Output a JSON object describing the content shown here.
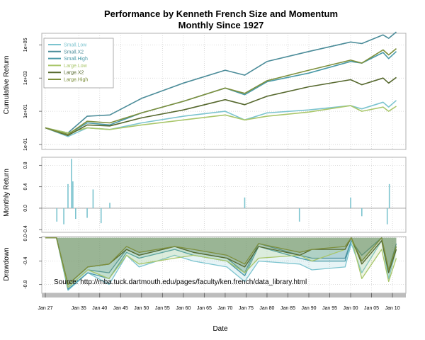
{
  "chart_data": [
    {
      "type": "line",
      "panel": "cumulative",
      "title": "Performance by Kenneth French Size and Momentum",
      "subtitle": "Monthly Since 1927",
      "ylabel": "Cumulative Return",
      "y_scale": "log",
      "y_ticks": [
        "1e-01",
        "1e+01",
        "1e+03",
        "1e+05"
      ],
      "ylim": [
        0.05,
        500000
      ],
      "grid": true,
      "legend_position": "top-left",
      "x": [
        "1927-01",
        "1932-06",
        "1937-01",
        "1942-06",
        "1950-01",
        "1960-01",
        "1970-01",
        "1974-09",
        "1980-01",
        "1990-01",
        "2000-01",
        "2002-09",
        "2007-10",
        "2009-02",
        "2010-12"
      ],
      "series": [
        {
          "name": "Small.Low",
          "color": "#7cc4cf",
          "values": [
            1,
            0.3,
            1.0,
            0.8,
            2.0,
            5.0,
            10.0,
            3.0,
            8.0,
            12.0,
            22.0,
            14.0,
            35.0,
            18.0,
            45.0
          ]
        },
        {
          "name": "Small.X2",
          "color": "#4b8c99",
          "values": [
            1,
            0.5,
            5.0,
            6.0,
            60.0,
            500.0,
            3000.0,
            1500.0,
            10000.0,
            40000.0,
            150000.0,
            120000.0,
            400000.0,
            250000.0,
            600000.0
          ]
        },
        {
          "name": "Small.High",
          "color": "#4a9aa8",
          "values": [
            1,
            0.4,
            2.0,
            1.5,
            8.0,
            40.0,
            250.0,
            100.0,
            600.0,
            2000.0,
            10000.0,
            8000.0,
            35000.0,
            15000.0,
            40000.0
          ]
        },
        {
          "name": "Large.Low",
          "color": "#a9c66a",
          "values": [
            1,
            0.5,
            1.0,
            0.8,
            1.5,
            3.0,
            6.0,
            3.0,
            5.0,
            9.0,
            22.0,
            10.0,
            18.0,
            10.0,
            20.0
          ]
        },
        {
          "name": "Large.X2",
          "color": "#56682e",
          "values": [
            1,
            0.35,
            1.5,
            1.3,
            4.0,
            12.0,
            50.0,
            25.0,
            80.0,
            300.0,
            800.0,
            400.0,
            1000.0,
            500.0,
            1100.0
          ]
        },
        {
          "name": "Large.High",
          "color": "#7d8f3c",
          "values": [
            1,
            0.4,
            2.5,
            2.0,
            8.0,
            40.0,
            250.0,
            120.0,
            700.0,
            3000.0,
            12000.0,
            8000.0,
            50000.0,
            25000.0,
            60000.0
          ]
        }
      ]
    },
    {
      "type": "line",
      "panel": "monthly",
      "ylabel": "Monthly Return",
      "y_ticks": [
        "-0.4",
        "0.0",
        "0.4",
        "0.8"
      ],
      "ylim": [
        -0.45,
        0.95
      ],
      "grid": true,
      "x": [
        "1929-10",
        "1931-06",
        "1932-06",
        "1933-04",
        "1933-08",
        "1934-04",
        "1937-01",
        "1938-06",
        "1940-05",
        "1942-06",
        "1974-09",
        "1987-10",
        "2000-01",
        "2002-09",
        "2008-10",
        "2009-04"
      ],
      "series": [
        {
          "name": "Small.Low",
          "color": "#7cc4cf",
          "values": [
            -0.25,
            -0.3,
            0.45,
            0.92,
            0.5,
            -0.2,
            -0.18,
            0.35,
            -0.28,
            0.1,
            0.2,
            -0.25,
            0.2,
            -0.15,
            -0.3,
            0.45
          ]
        }
      ]
    },
    {
      "type": "area",
      "panel": "drawdown",
      "ylabel": "Drawdown",
      "xlabel": "Date",
      "y_ticks": [
        "-0.8",
        "-0.4",
        "0.0"
      ],
      "ylim": [
        -0.95,
        0.02
      ],
      "grid": true,
      "annotation": "Source: http://mba.tuck.dartmouth.edu/pages/faculty/ken.french/data_library.html",
      "x_ticks": [
        "Jan 27",
        "Jan 35",
        "Jan 40",
        "Jan 45",
        "Jan 50",
        "Jan 55",
        "Jan 60",
        "Jan 65",
        "Jan 70",
        "Jan 75",
        "Jan 80",
        "Jan 85",
        "Jan 90",
        "Jan 95",
        "Jan 00",
        "Jan 05",
        "Jan 10"
      ],
      "x_tick_years": [
        1927,
        1935,
        1940,
        1945,
        1950,
        1955,
        1960,
        1965,
        1970,
        1975,
        1980,
        1985,
        1990,
        1995,
        2000,
        2005,
        2010
      ],
      "x": [
        "1927-01",
        "1929-09",
        "1932-06",
        "1937-03",
        "1942-04",
        "1946-06",
        "1949-06",
        "1957-12",
        "1962-06",
        "1970-06",
        "1974-09",
        "1978-01",
        "1987-11",
        "1990-10",
        "1998-09",
        "2000-03",
        "2002-09",
        "2007-06",
        "2009-02",
        "2010-12"
      ],
      "series": [
        {
          "name": "Small.Low",
          "color": "#7cc4cf",
          "values": [
            0,
            0,
            -0.9,
            -0.6,
            -0.8,
            -0.3,
            -0.5,
            -0.3,
            -0.4,
            -0.5,
            -0.75,
            -0.4,
            -0.45,
            -0.55,
            -0.5,
            -0.1,
            -0.6,
            -0.05,
            -0.7,
            -0.2
          ]
        },
        {
          "name": "Small.X2",
          "color": "#4b8c99",
          "values": [
            0,
            0,
            -0.85,
            -0.55,
            -0.6,
            -0.2,
            -0.3,
            -0.15,
            -0.25,
            -0.35,
            -0.6,
            -0.1,
            -0.3,
            -0.35,
            -0.35,
            -0.05,
            -0.3,
            0,
            -0.55,
            -0.1
          ]
        },
        {
          "name": "Small.High",
          "color": "#4a9aa8",
          "values": [
            0,
            0,
            -0.88,
            -0.6,
            -0.7,
            -0.25,
            -0.35,
            -0.2,
            -0.3,
            -0.4,
            -0.65,
            -0.15,
            -0.35,
            -0.4,
            -0.4,
            -0.05,
            -0.4,
            0,
            -0.6,
            -0.15
          ]
        },
        {
          "name": "Large.Low",
          "color": "#a9c66a",
          "values": [
            0,
            0,
            -0.85,
            -0.55,
            -0.7,
            -0.3,
            -0.45,
            -0.35,
            -0.3,
            -0.4,
            -0.6,
            -0.35,
            -0.3,
            -0.4,
            -0.2,
            0,
            -0.7,
            -0.2,
            -0.75,
            -0.35
          ]
        },
        {
          "name": "Large.X2",
          "color": "#56682e",
          "values": [
            0,
            0,
            -0.8,
            -0.5,
            -0.45,
            -0.2,
            -0.3,
            -0.15,
            -0.25,
            -0.35,
            -0.5,
            -0.15,
            -0.3,
            -0.2,
            -0.2,
            0,
            -0.45,
            -0.05,
            -0.6,
            -0.2
          ]
        },
        {
          "name": "Large.High",
          "color": "#7d8f3c",
          "values": [
            0,
            0,
            -0.8,
            -0.5,
            -0.45,
            -0.15,
            -0.25,
            -0.15,
            -0.2,
            -0.3,
            -0.45,
            -0.1,
            -0.25,
            -0.2,
            -0.15,
            0,
            -0.4,
            0,
            -0.55,
            -0.15
          ]
        }
      ]
    }
  ]
}
